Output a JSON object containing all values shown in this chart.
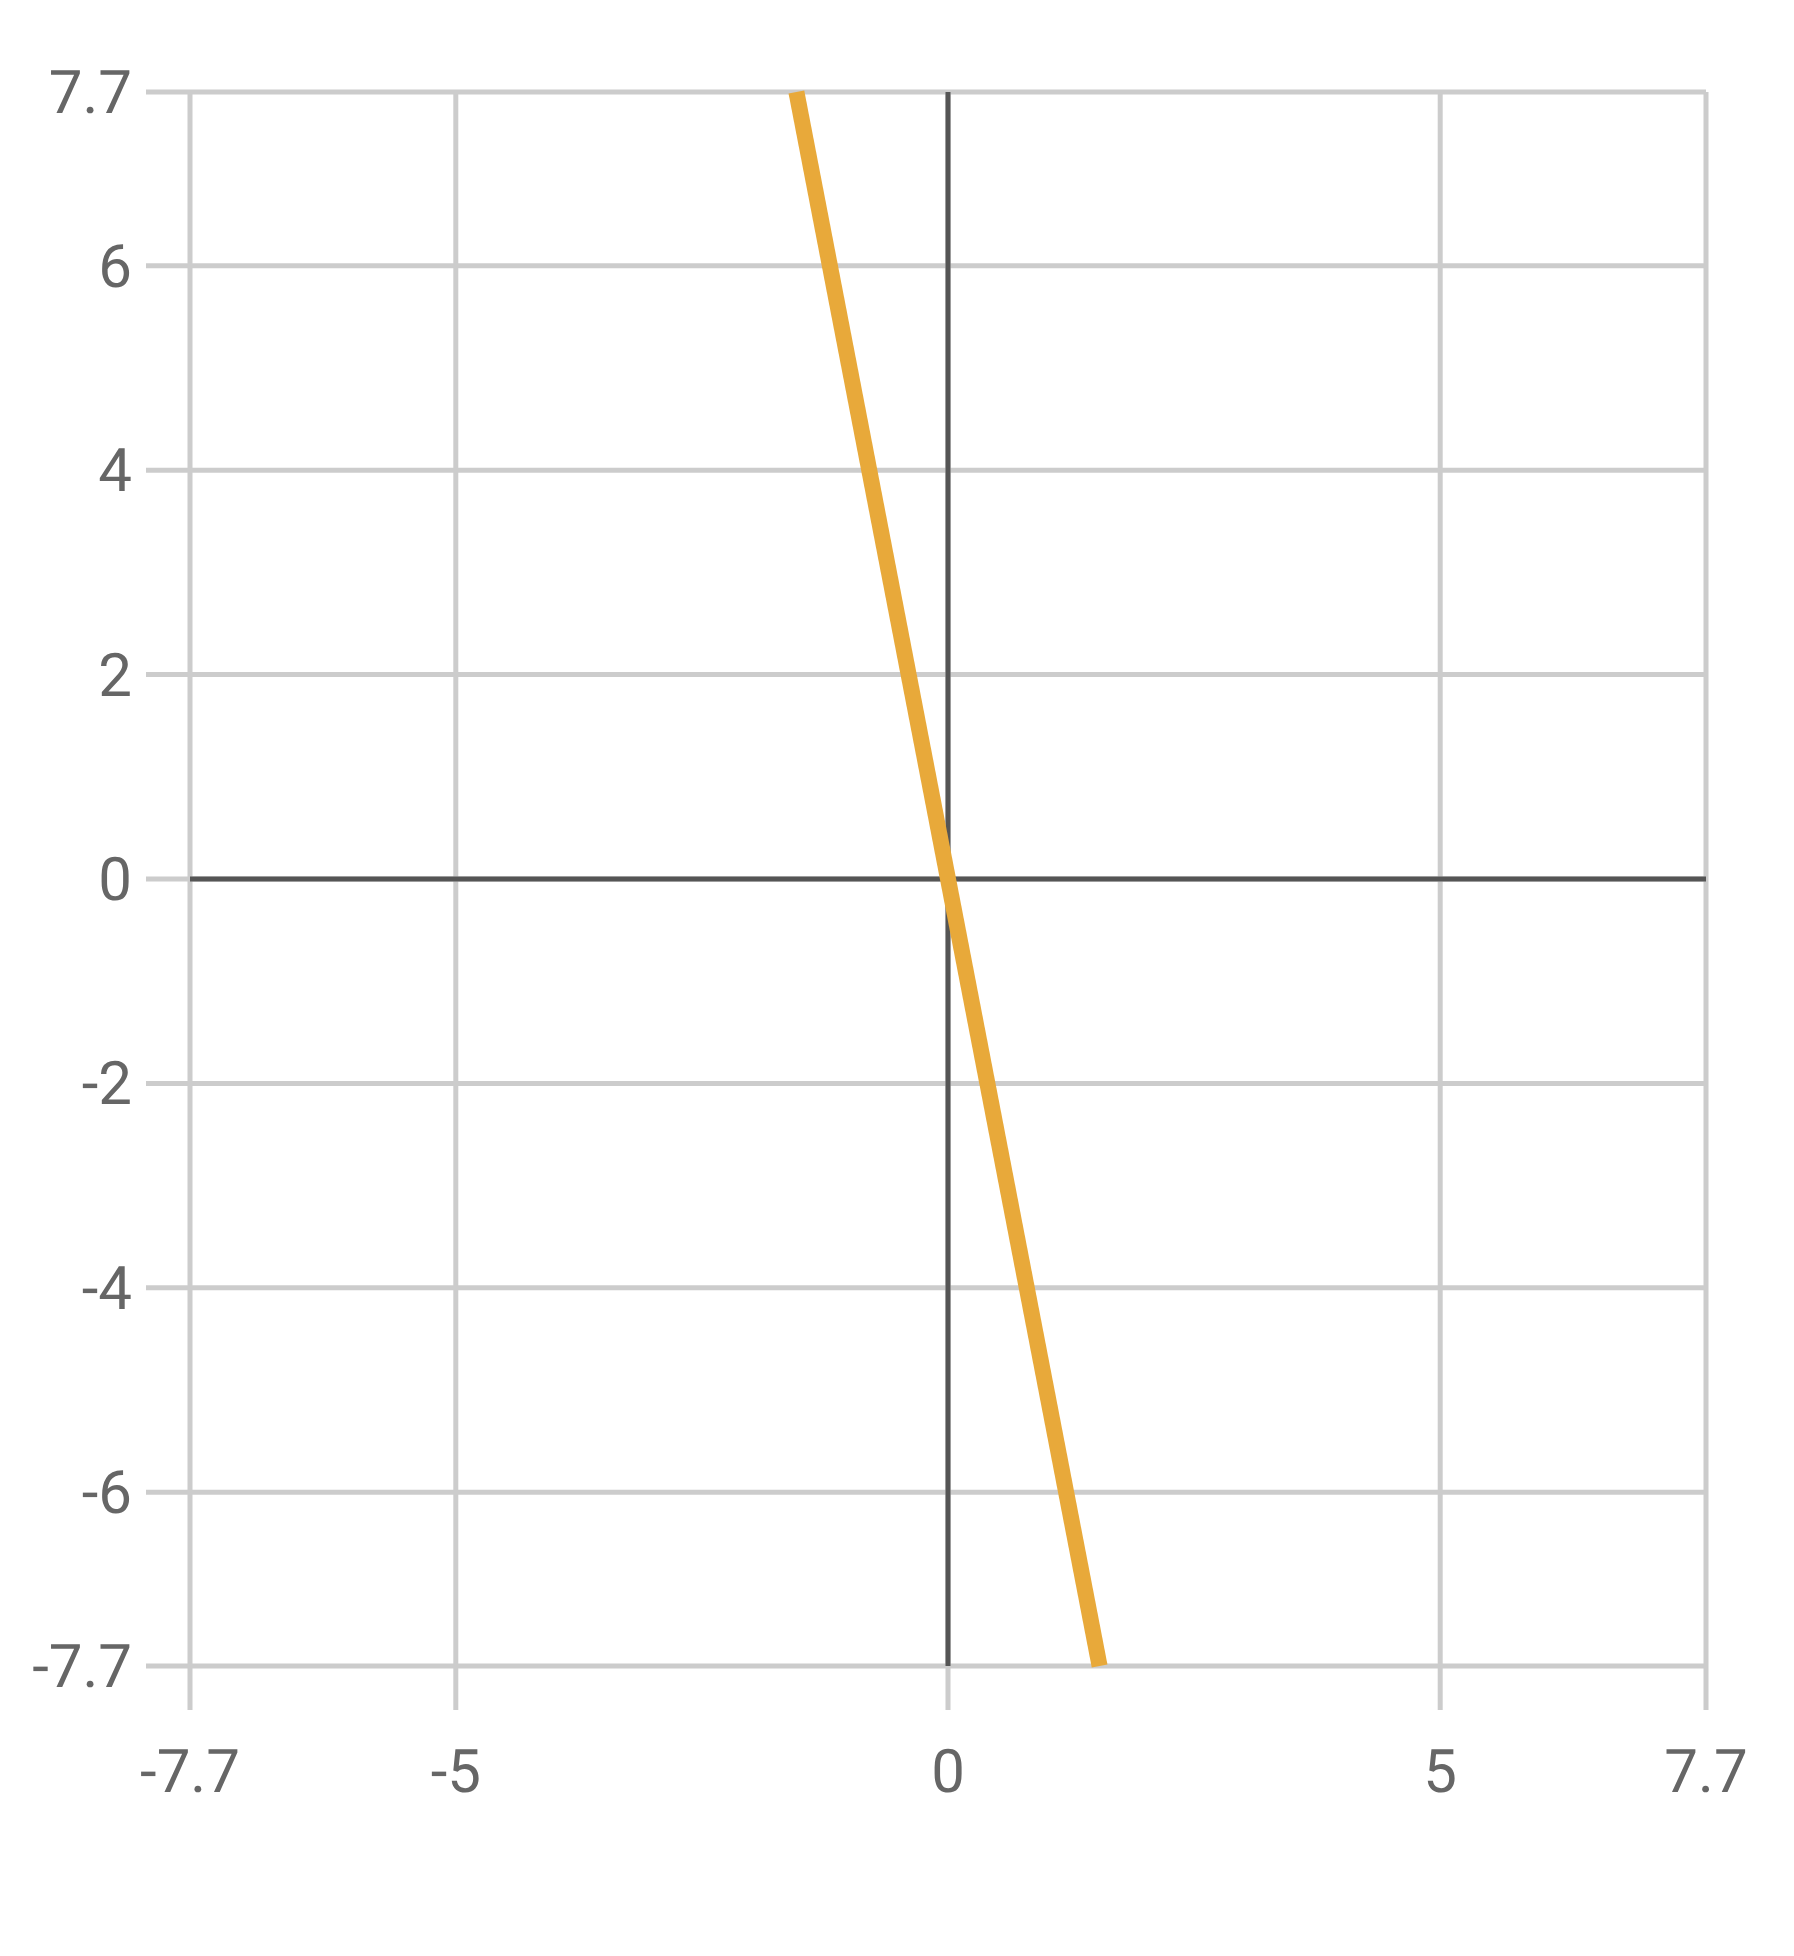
{
  "chart_data": {
    "type": "line",
    "x": [
      -1.54,
      1.54
    ],
    "series": [
      {
        "color": "#e8a93a",
        "values": [
          7.7,
          -7.7
        ]
      }
    ],
    "xlim": [
      -7.7,
      7.7
    ],
    "xticks": [
      -7.7,
      -5,
      0,
      5,
      7.7
    ],
    "ylim": [
      -7.7,
      7.7
    ],
    "yticks": [
      -7.7,
      -6,
      -4,
      -2,
      0,
      2,
      4,
      6,
      7.7
    ],
    "grid": true,
    "marker": "none",
    "line_style": "solid"
  }
}
